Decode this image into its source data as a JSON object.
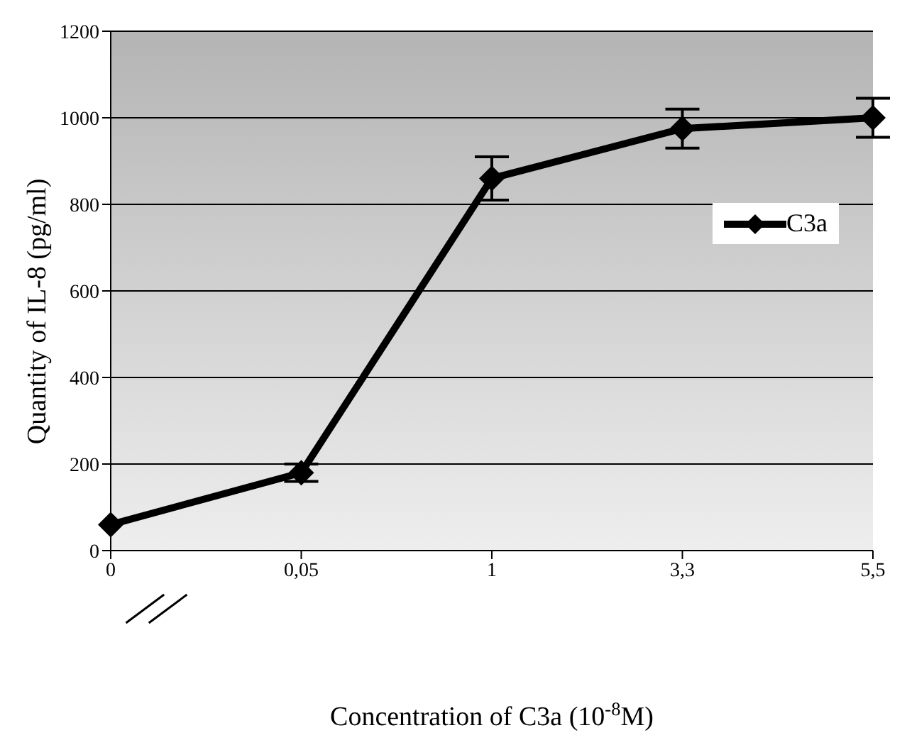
{
  "chart_data": {
    "type": "line",
    "xlabel": "Concentration of C3a (10$^{-8}$M)",
    "ylabel": "Quantity of IL-8 (pg/ml)",
    "categories": [
      "0",
      "0,05",
      "1",
      "3,3",
      "5,5"
    ],
    "series": [
      {
        "name": "C3a",
        "color": "#000000",
        "values": [
          60,
          180,
          860,
          975,
          1000
        ],
        "errors": [
          null,
          20,
          50,
          45,
          45
        ]
      }
    ],
    "ylim": [
      0,
      1200
    ],
    "yticks": [
      0,
      200,
      400,
      600,
      800,
      1000,
      1200
    ],
    "grid": "y",
    "legend": "top right",
    "marker": "diamond",
    "line_style": "solid"
  }
}
